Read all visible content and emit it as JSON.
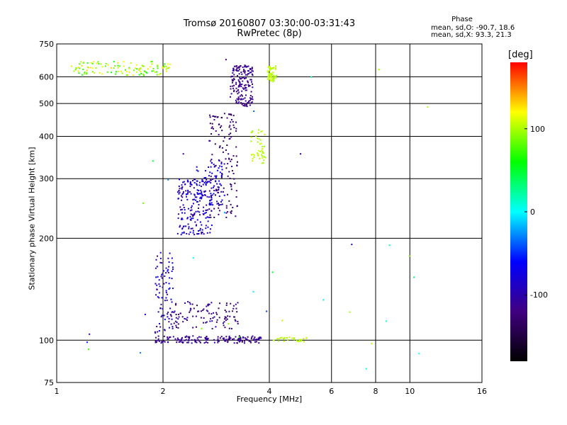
{
  "header": {
    "title_line1": "Tromsø 20160807 03:30:00-03:31:43",
    "title_line2": "RwPretec (8p)",
    "stats_header": "Phase",
    "stats_o": "mean, sd,O: -90.7, 18.6",
    "stats_x": "mean, sd,X:  93.3, 21.3"
  },
  "colorbar": {
    "unit": "[deg]",
    "ticks": [
      {
        "label": "100",
        "value": 100
      },
      {
        "label": "0",
        "value": 0
      },
      {
        "label": "-100",
        "value": -100
      }
    ],
    "range": [
      -180,
      180
    ],
    "colors": [
      "#000000",
      "#400080",
      "#0000ff",
      "#00ffff",
      "#00ff00",
      "#ffff00",
      "#ff0000"
    ]
  },
  "chart_data": {
    "type": "scatter",
    "title": "Tromsø 20160807 03:30:00-03:31:43",
    "subtitle": "RwPretec (8p)",
    "xlabel": "Frequency [MHz]",
    "ylabel": "Stationary phase Virtual Height [km]",
    "xscale": "log",
    "yscale": "log",
    "xlim": [
      1,
      16
    ],
    "ylim": [
      75,
      750
    ],
    "x_ticks": [
      {
        "value": 1,
        "label": "1"
      },
      {
        "value": 2,
        "label": "2"
      },
      {
        "value": 4,
        "label": "4"
      },
      {
        "value": 6,
        "label": "6"
      },
      {
        "value": 8,
        "label": "8"
      },
      {
        "value": 10,
        "label": "10"
      },
      {
        "value": 16,
        "label": "16"
      }
    ],
    "y_ticks": [
      {
        "value": 75,
        "label": "75"
      },
      {
        "value": 100,
        "label": "100"
      },
      {
        "value": 200,
        "label": "200"
      },
      {
        "value": 300,
        "label": "300"
      },
      {
        "value": 400,
        "label": "400"
      },
      {
        "value": 500,
        "label": "500"
      },
      {
        "value": 600,
        "label": "600"
      },
      {
        "value": 750,
        "label": "750"
      }
    ],
    "grid": true,
    "clusters": [
      {
        "name": "es-layer-100km",
        "xr": [
          1.9,
          3.8
        ],
        "yr": [
          98,
          103
        ],
        "n": 170,
        "phase": [
          -130,
          -95
        ]
      },
      {
        "name": "es-layer-100km-yellow",
        "xr": [
          4.1,
          5.1
        ],
        "yr": [
          99,
          102
        ],
        "n": 30,
        "phase": [
          95,
          110
        ]
      },
      {
        "name": "e-cusp-vertical",
        "xr": [
          1.9,
          2.15
        ],
        "yr": [
          105,
          185
        ],
        "n": 90,
        "phase": [
          -120,
          -60
        ]
      },
      {
        "name": "e-trace",
        "xr": [
          2.1,
          3.3
        ],
        "yr": [
          108,
          130
        ],
        "n": 110,
        "phase": [
          -140,
          -95
        ]
      },
      {
        "name": "f-cluster-low",
        "xr": [
          2.2,
          2.75
        ],
        "yr": [
          205,
          300
        ],
        "n": 200,
        "phase": [
          -120,
          -60
        ]
      },
      {
        "name": "f-cluster-mid",
        "xr": [
          2.45,
          3.0
        ],
        "yr": [
          250,
          340
        ],
        "n": 80,
        "phase": [
          -80,
          -60
        ]
      },
      {
        "name": "f-trace-rise",
        "xr": [
          2.7,
          3.25
        ],
        "yr": [
          230,
          470
        ],
        "n": 140,
        "phase": [
          -150,
          -110
        ]
      },
      {
        "name": "f-trace-upper",
        "xr": [
          3.1,
          3.6
        ],
        "yr": [
          490,
          650
        ],
        "n": 170,
        "phase": [
          -125,
          -100
        ]
      },
      {
        "name": "x-trace",
        "xr": [
          3.55,
          3.9
        ],
        "yr": [
          330,
          420
        ],
        "n": 45,
        "phase": [
          95,
          110
        ]
      },
      {
        "name": "x-top",
        "xr": [
          3.95,
          4.2
        ],
        "yr": [
          580,
          645
        ],
        "n": 60,
        "phase": [
          95,
          110
        ]
      },
      {
        "name": "top-band",
        "xr": [
          1.1,
          2.1
        ],
        "yr": [
          605,
          665
        ],
        "n": 120,
        "phase": [
          60,
          130
        ]
      },
      {
        "name": "scattered",
        "xr": [
          1.1,
          12
        ],
        "yr": [
          80,
          700
        ],
        "n": 35,
        "phase": [
          -130,
          110
        ]
      }
    ]
  }
}
